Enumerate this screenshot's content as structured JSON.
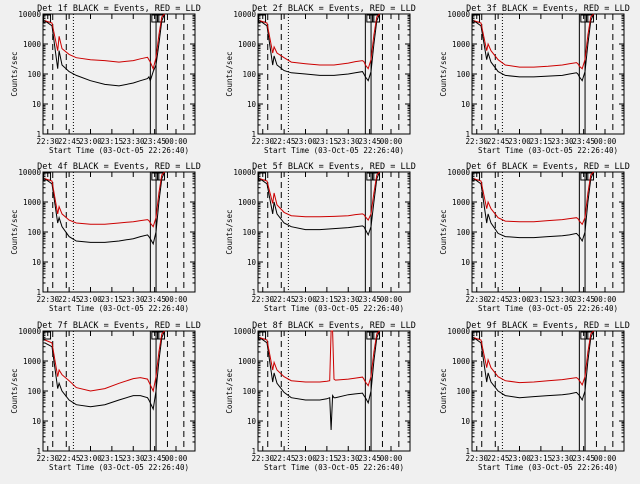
{
  "colors": {
    "background": "#f0f0f0",
    "events": "#000000",
    "lld": "#cc0000",
    "axes": "#000000"
  },
  "common": {
    "xlabel": "Start Time (03-Oct-05 22:26:40)",
    "ylabel": "Counts/sec",
    "x_ticks": [
      "22:30",
      "22:45",
      "23:00",
      "23:15",
      "23:30",
      "23:45",
      "00:00"
    ],
    "y_ticks": [
      "1",
      "10",
      "100",
      "1000",
      "10000"
    ],
    "x_range": [
      "22:26:40",
      "00:13:20"
    ],
    "y_range": [
      1,
      10000
    ],
    "y_scale": "log",
    "legend_text": "BLACK = Events, RED = LLD",
    "markers": {
      "dashed": [
        "22:33:30",
        "22:43:00",
        "23:54:00",
        "00:05:30"
      ],
      "dotted": [
        "22:48:00"
      ],
      "solid": [
        "23:42:00",
        "23:46:00"
      ],
      "boxes": [
        "22:29:30",
        "23:45:30",
        "23:49:30"
      ]
    }
  },
  "chart_data": [
    {
      "type": "line",
      "title": "Det 1f BLACK = Events, RED = LLD",
      "xlabel": "Start Time (03-Oct-05 22:26:40)",
      "ylabel": "Counts/sec",
      "x": [
        "22:28:00",
        "22:33:00",
        "22:37:00",
        "22:38:00",
        "22:40:00",
        "22:45:00",
        "22:50:00",
        "23:00:00",
        "23:10:00",
        "23:20:00",
        "23:30:00",
        "23:35:00",
        "23:40:00",
        "23:41:00",
        "23:42:00",
        "23:44:00",
        "23:46:00",
        "23:48:00",
        "23:50:00",
        "23:52:00"
      ],
      "series": [
        {
          "name": "Events",
          "values": [
            6000,
            4000,
            150,
            600,
            200,
            120,
            90,
            60,
            45,
            40,
            50,
            60,
            70,
            80,
            60,
            120,
            200,
            1000,
            6000,
            10000
          ]
        },
        {
          "name": "LLD",
          "values": [
            6000,
            5000,
            600,
            1800,
            700,
            450,
            350,
            300,
            280,
            250,
            280,
            320,
            360,
            300,
            250,
            150,
            350,
            2000,
            8000,
            10000
          ]
        }
      ]
    },
    {
      "type": "line",
      "title": "Det 2f BLACK = Events, RED = LLD",
      "xlabel": "Start Time (03-Oct-05 22:26:40)",
      "ylabel": "Counts/sec",
      "x": [
        "22:28:00",
        "22:33:00",
        "22:37:00",
        "22:38:00",
        "22:40:00",
        "22:45:00",
        "22:50:00",
        "23:00:00",
        "23:10:00",
        "23:20:00",
        "23:30:00",
        "23:35:00",
        "23:40:00",
        "23:41:00",
        "23:42:00",
        "23:44:00",
        "23:46:00",
        "23:48:00",
        "23:50:00",
        "23:52:00"
      ],
      "series": [
        {
          "name": "Events",
          "values": [
            6000,
            4000,
            200,
            400,
            200,
            130,
            110,
            100,
            90,
            90,
            100,
            110,
            120,
            100,
            80,
            60,
            120,
            1000,
            6000,
            10000
          ]
        },
        {
          "name": "LLD",
          "values": [
            6000,
            5000,
            500,
            800,
            500,
            350,
            250,
            220,
            200,
            200,
            230,
            260,
            280,
            260,
            200,
            150,
            300,
            2000,
            8000,
            10000
          ]
        }
      ]
    },
    {
      "type": "line",
      "title": "Det 3f BLACK = Events, RED = LLD",
      "xlabel": "Start Time (03-Oct-05 22:26:40)",
      "ylabel": "Counts/sec",
      "x": [
        "22:28:00",
        "22:33:00",
        "22:37:00",
        "22:38:00",
        "22:40:00",
        "22:45:00",
        "22:50:00",
        "23:00:00",
        "23:10:00",
        "23:20:00",
        "23:30:00",
        "23:35:00",
        "23:40:00",
        "23:41:00",
        "23:42:00",
        "23:44:00",
        "23:46:00",
        "23:48:00",
        "23:50:00",
        "23:52:00"
      ],
      "series": [
        {
          "name": "Events",
          "values": [
            6000,
            4000,
            300,
            500,
            250,
            120,
            90,
            80,
            80,
            85,
            90,
            100,
            110,
            100,
            80,
            60,
            120,
            1000,
            6000,
            10000
          ]
        },
        {
          "name": "LLD",
          "values": [
            6000,
            5000,
            600,
            1000,
            600,
            300,
            200,
            170,
            170,
            180,
            200,
            220,
            240,
            220,
            180,
            150,
            300,
            2000,
            8000,
            10000
          ]
        }
      ]
    },
    {
      "type": "line",
      "title": "Det 4f BLACK = Events, RED = LLD",
      "xlabel": "Start Time (03-Oct-05 22:26:40)",
      "ylabel": "Counts/sec",
      "x": [
        "22:28:00",
        "22:33:00",
        "22:37:00",
        "22:38:00",
        "22:40:00",
        "22:45:00",
        "22:50:00",
        "23:00:00",
        "23:10:00",
        "23:20:00",
        "23:30:00",
        "23:35:00",
        "23:40:00",
        "23:41:00",
        "23:42:00",
        "23:44:00",
        "23:46:00",
        "23:48:00",
        "23:50:00",
        "23:52:00"
      ],
      "series": [
        {
          "name": "Events",
          "values": [
            6000,
            4000,
            200,
            300,
            150,
            70,
            50,
            45,
            45,
            50,
            60,
            70,
            80,
            70,
            60,
            40,
            100,
            1000,
            6000,
            10000
          ]
        },
        {
          "name": "LLD",
          "values": [
            6000,
            5000,
            400,
            700,
            400,
            250,
            200,
            180,
            180,
            200,
            220,
            240,
            260,
            240,
            200,
            150,
            300,
            2000,
            8000,
            10000
          ]
        }
      ]
    },
    {
      "type": "line",
      "title": "Det 5f BLACK = Events, RED = LLD",
      "xlabel": "Start Time (03-Oct-05 22:26:40)",
      "ylabel": "Counts/sec",
      "x": [
        "22:28:00",
        "22:33:00",
        "22:37:00",
        "22:38:00",
        "22:40:00",
        "22:45:00",
        "22:50:00",
        "23:00:00",
        "23:10:00",
        "23:20:00",
        "23:30:00",
        "23:35:00",
        "23:40:00",
        "23:41:00",
        "23:42:00",
        "23:44:00",
        "23:46:00",
        "23:48:00",
        "23:50:00",
        "23:52:00"
      ],
      "series": [
        {
          "name": "Events",
          "values": [
            6000,
            4000,
            400,
            1000,
            400,
            200,
            150,
            120,
            120,
            130,
            140,
            150,
            160,
            150,
            120,
            80,
            150,
            1000,
            6000,
            10000
          ]
        },
        {
          "name": "LLD",
          "values": [
            6000,
            5000,
            900,
            2000,
            800,
            450,
            350,
            320,
            320,
            330,
            350,
            380,
            400,
            380,
            320,
            250,
            400,
            2000,
            8000,
            10000
          ]
        }
      ]
    },
    {
      "type": "line",
      "title": "Det 6f BLACK = Events, RED = LLD",
      "xlabel": "Start Time (03-Oct-05 22:26:40)",
      "ylabel": "Counts/sec",
      "x": [
        "22:28:00",
        "22:33:00",
        "22:37:00",
        "22:38:00",
        "22:40:00",
        "22:45:00",
        "22:50:00",
        "23:00:00",
        "23:10:00",
        "23:20:00",
        "23:30:00",
        "23:35:00",
        "23:40:00",
        "23:41:00",
        "23:42:00",
        "23:44:00",
        "23:46:00",
        "23:48:00",
        "23:50:00",
        "23:52:00"
      ],
      "series": [
        {
          "name": "Events",
          "values": [
            6000,
            4000,
            200,
            400,
            200,
            90,
            70,
            65,
            65,
            70,
            75,
            80,
            90,
            80,
            70,
            50,
            100,
            1000,
            6000,
            10000
          ]
        },
        {
          "name": "LLD",
          "values": [
            6000,
            5000,
            600,
            1000,
            600,
            300,
            230,
            220,
            220,
            240,
            260,
            280,
            300,
            280,
            230,
            180,
            300,
            2000,
            8000,
            10000
          ]
        }
      ]
    },
    {
      "type": "line",
      "title": "Det 7f BLACK = Events, RED = LLD",
      "xlabel": "Start Time (03-Oct-05 22:26:40)",
      "ylabel": "Counts/sec",
      "x": [
        "22:28:00",
        "22:33:00",
        "22:37:00",
        "22:38:00",
        "22:40:00",
        "22:45:00",
        "22:50:00",
        "23:00:00",
        "23:10:00",
        "23:20:00",
        "23:30:00",
        "23:35:00",
        "23:40:00",
        "23:41:00",
        "23:42:00",
        "23:44:00",
        "23:46:00",
        "23:48:00",
        "23:50:00",
        "23:52:00"
      ],
      "series": [
        {
          "name": "Events",
          "values": [
            4000,
            3000,
            120,
            180,
            100,
            50,
            35,
            30,
            35,
            50,
            70,
            70,
            60,
            50,
            40,
            25,
            100,
            1000,
            6000,
            10000
          ]
        },
        {
          "name": "LLD",
          "values": [
            5000,
            4000,
            300,
            500,
            350,
            220,
            130,
            100,
            120,
            180,
            260,
            280,
            250,
            200,
            160,
            100,
            300,
            2000,
            8000,
            10000
          ]
        }
      ]
    },
    {
      "type": "line",
      "title": "Det 8f BLACK = Events, RED = LLD",
      "xlabel": "Start Time (03-Oct-05 22:26:40)",
      "ylabel": "Counts/sec",
      "x": [
        "22:28:00",
        "22:33:00",
        "22:37:00",
        "22:38:00",
        "22:40:00",
        "22:45:00",
        "22:50:00",
        "23:00:00",
        "23:10:00",
        "23:15:00",
        "23:17:00",
        "23:18:00",
        "23:19:00",
        "23:20:00",
        "23:21:00",
        "23:30:00",
        "23:35:00",
        "23:40:00",
        "23:41:00",
        "23:42:00",
        "23:44:00",
        "23:46:00",
        "23:48:00",
        "23:50:00",
        "23:52:00"
      ],
      "series": [
        {
          "name": "Events",
          "values": [
            6000,
            4000,
            200,
            400,
            180,
            90,
            60,
            50,
            50,
            55,
            60,
            5,
            70,
            60,
            60,
            75,
            80,
            85,
            70,
            60,
            40,
            100,
            1000,
            6000,
            10000
          ]
        },
        {
          "name": "LLD",
          "values": [
            6000,
            5000,
            500,
            900,
            500,
            300,
            220,
            200,
            200,
            210,
            220,
            10000,
            10000,
            250,
            230,
            250,
            270,
            290,
            250,
            200,
            150,
            300,
            2000,
            8000,
            10000
          ]
        }
      ]
    },
    {
      "type": "line",
      "title": "Det 9f BLACK = Events, RED = LLD",
      "xlabel": "Start Time (03-Oct-05 22:26:40)",
      "ylabel": "Counts/sec",
      "x": [
        "22:28:00",
        "22:33:00",
        "22:37:00",
        "22:38:00",
        "22:40:00",
        "22:45:00",
        "22:50:00",
        "23:00:00",
        "23:10:00",
        "23:20:00",
        "23:30:00",
        "23:35:00",
        "23:40:00",
        "23:41:00",
        "23:42:00",
        "23:44:00",
        "23:46:00",
        "23:48:00",
        "23:50:00",
        "23:52:00"
      ],
      "series": [
        {
          "name": "Events",
          "values": [
            6000,
            4000,
            200,
            400,
            200,
            100,
            70,
            60,
            65,
            70,
            75,
            80,
            90,
            80,
            70,
            50,
            100,
            1000,
            6000,
            10000
          ]
        },
        {
          "name": "LLD",
          "values": [
            6000,
            5000,
            600,
            1100,
            600,
            300,
            220,
            190,
            200,
            220,
            240,
            260,
            280,
            260,
            220,
            160,
            300,
            2000,
            8000,
            10000
          ]
        }
      ]
    }
  ]
}
